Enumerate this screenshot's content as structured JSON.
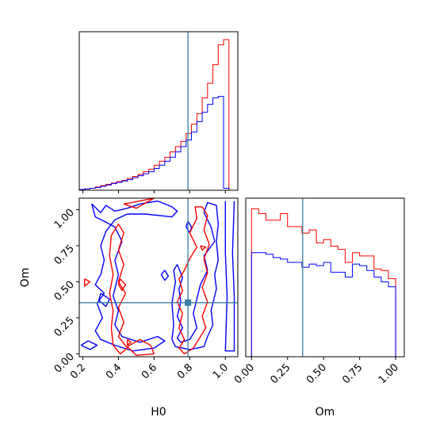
{
  "colors": {
    "series_red": "#ff0000",
    "series_blue": "#0000ff",
    "truth": "#3a7ca5",
    "frame": "#000000"
  },
  "chart_data": {
    "type": "corner-plot",
    "parameters": [
      "H0",
      "Om"
    ],
    "truths": {
      "H0": 0.79,
      "Om": 0.355
    },
    "marginals": {
      "H0": {
        "xlim": [
          0.18,
          1.07
        ],
        "bins": [
          0.18,
          0.21,
          0.24,
          0.27,
          0.3,
          0.33,
          0.36,
          0.39,
          0.42,
          0.45,
          0.48,
          0.51,
          0.54,
          0.57,
          0.6,
          0.63,
          0.66,
          0.69,
          0.72,
          0.75,
          0.78,
          0.81,
          0.84,
          0.87,
          0.9,
          0.93,
          0.96,
          0.99,
          1.02
        ],
        "series": [
          {
            "color": "red",
            "counts": [
              1,
              2,
              3,
              5,
              7,
              9,
              11,
              13,
              15,
              18,
              21,
              24,
              28,
              32,
              38,
              44,
              50,
              58,
              66,
              74,
              86,
              100,
              116,
              140,
              162,
              190,
              220,
              228
            ]
          },
          {
            "color": "blue",
            "counts": [
              1,
              2,
              3,
              4,
              6,
              8,
              10,
              12,
              14,
              16,
              19,
              22,
              25,
              28,
              33,
              38,
              44,
              50,
              58,
              66,
              76,
              88,
              104,
              118,
              130,
              140,
              142,
              3
            ]
          }
        ]
      },
      "Om": {
        "xlim": [
          -0.04,
          1.06
        ],
        "ticks": [
          0.0,
          0.25,
          0.5,
          0.75,
          1.0
        ],
        "tick_labels": [
          "0.00",
          "0.25",
          "0.50",
          "0.75",
          "1.00"
        ],
        "bins": [
          -0.01,
          0.0,
          0.05,
          0.1,
          0.15,
          0.2,
          0.25,
          0.3,
          0.35,
          0.4,
          0.45,
          0.5,
          0.55,
          0.6,
          0.65,
          0.7,
          0.75,
          0.8,
          0.85,
          0.9,
          0.95,
          1.0,
          1.05
        ],
        "series": [
          {
            "color": "red",
            "counts": [
              0,
              182,
              176,
              168,
              168,
              176,
              160,
              160,
              152,
              156,
              140,
              144,
              136,
              132,
              116,
              128,
              124,
              124,
              108,
              106,
              96,
              0
            ]
          },
          {
            "color": "blue",
            "counts": [
              0,
              128,
              128,
              126,
              122,
              120,
              116,
              116,
              110,
              114,
              112,
              116,
              104,
              104,
              98,
              114,
              112,
              106,
              98,
              92,
              86,
              0
            ]
          }
        ]
      }
    },
    "joint": {
      "x_param": "H0",
      "y_param": "Om",
      "xlim": [
        0.18,
        1.07
      ],
      "ylim": [
        -0.02,
        1.08
      ],
      "x_ticks": [
        0.2,
        0.4,
        0.6,
        0.8,
        1.0
      ],
      "x_tick_labels": [
        "0.2",
        "0.4",
        "0.6",
        "0.8",
        "1.0"
      ],
      "y_ticks": [
        0.0,
        0.25,
        0.5,
        0.75,
        1.0
      ],
      "y_tick_labels": [
        "0.00",
        "0.25",
        "0.50",
        "0.75",
        "1.00"
      ],
      "contours": [
        {
          "color": "blue",
          "points": [
            [
              0.25,
              1.04
            ],
            [
              0.3,
              0.98
            ],
            [
              0.33,
              1.03
            ],
            [
              0.38,
              0.99
            ],
            [
              0.45,
              1.01
            ],
            [
              0.52,
              1.04
            ],
            [
              0.62,
              1.06
            ],
            [
              0.7,
              1.02
            ],
            [
              0.73,
              0.99
            ],
            [
              0.7,
              0.95
            ],
            [
              0.55,
              0.97
            ],
            [
              0.45,
              0.97
            ],
            [
              0.38,
              0.93
            ],
            [
              0.33,
              0.85
            ],
            [
              0.3,
              0.75
            ],
            [
              0.32,
              0.65
            ],
            [
              0.3,
              0.55
            ],
            [
              0.27,
              0.48
            ],
            [
              0.32,
              0.42
            ],
            [
              0.28,
              0.35
            ],
            [
              0.31,
              0.25
            ],
            [
              0.27,
              0.16
            ],
            [
              0.3,
              0.1
            ],
            [
              0.38,
              0.06
            ],
            [
              0.48,
              0.02
            ],
            [
              0.6,
              0.04
            ],
            [
              0.66,
              0.09
            ],
            [
              0.62,
              0.12
            ],
            [
              0.52,
              0.08
            ],
            [
              0.42,
              0.12
            ],
            [
              0.38,
              0.2
            ],
            [
              0.4,
              0.3
            ],
            [
              0.37,
              0.4
            ],
            [
              0.4,
              0.55
            ],
            [
              0.38,
              0.65
            ],
            [
              0.42,
              0.78
            ],
            [
              0.38,
              0.88
            ],
            [
              0.32,
              0.92
            ],
            [
              0.27,
              0.95
            ],
            [
              0.25,
              1.04
            ]
          ]
        },
        {
          "color": "blue",
          "points": [
            [
              0.19,
              0.06
            ],
            [
              0.24,
              0.03
            ],
            [
              0.28,
              0.06
            ],
            [
              0.23,
              0.09
            ],
            [
              0.19,
              0.06
            ]
          ]
        },
        {
          "color": "blue",
          "points": [
            [
              0.3,
              0.42
            ],
            [
              0.35,
              0.38
            ],
            [
              0.33,
              0.33
            ],
            [
              0.29,
              0.37
            ],
            [
              0.3,
              0.42
            ]
          ]
        },
        {
          "color": "blue",
          "points": [
            [
              0.73,
              0.62
            ],
            [
              0.76,
              0.53
            ],
            [
              0.74,
              0.45
            ],
            [
              0.75,
              0.36
            ],
            [
              0.73,
              0.26
            ],
            [
              0.76,
              0.18
            ],
            [
              0.73,
              0.11
            ],
            [
              0.75,
              0.08
            ],
            [
              0.8,
              0.1
            ],
            [
              0.84,
              0.18
            ],
            [
              0.82,
              0.28
            ],
            [
              0.84,
              0.38
            ],
            [
              0.86,
              0.48
            ],
            [
              0.9,
              0.58
            ],
            [
              0.88,
              0.68
            ],
            [
              0.94,
              0.78
            ],
            [
              0.92,
              0.88
            ],
            [
              0.88,
              0.98
            ],
            [
              0.9,
              1.05
            ],
            [
              0.95,
              1.03
            ],
            [
              0.96,
              0.9
            ],
            [
              0.95,
              0.78
            ],
            [
              0.96,
              0.65
            ],
            [
              0.94,
              0.55
            ],
            [
              0.95,
              0.45
            ],
            [
              0.92,
              0.3
            ],
            [
              0.93,
              0.2
            ],
            [
              0.9,
              0.12
            ],
            [
              0.88,
              0.05
            ],
            [
              0.8,
              0.03
            ],
            [
              0.72,
              0.05
            ],
            [
              0.7,
              0.1
            ],
            [
              0.71,
              0.2
            ],
            [
              0.7,
              0.35
            ],
            [
              0.72,
              0.5
            ],
            [
              0.71,
              0.58
            ],
            [
              0.73,
              0.62
            ]
          ]
        },
        {
          "color": "blue",
          "points": [
            [
              0.79,
              0.92
            ],
            [
              0.81,
              0.88
            ],
            [
              0.8,
              0.84
            ],
            [
              0.78,
              0.88
            ],
            [
              0.79,
              0.92
            ]
          ]
        },
        {
          "color": "blue",
          "points": [
            [
              0.66,
              0.58
            ],
            [
              0.68,
              0.54
            ],
            [
              0.66,
              0.51
            ],
            [
              0.64,
              0.55
            ],
            [
              0.66,
              0.58
            ]
          ]
        },
        {
          "color": "blue",
          "points": [
            [
              1.0,
              1.06
            ],
            [
              1.0,
              0.7
            ],
            [
              1.01,
              0.4
            ],
            [
              1.0,
              0.02
            ],
            [
              1.05,
              0.02
            ],
            [
              1.05,
              0.4
            ],
            [
              1.04,
              0.7
            ],
            [
              1.05,
              1.06
            ]
          ]
        },
        {
          "color": "red",
          "points": [
            [
              0.36,
              0.82
            ],
            [
              0.4,
              0.9
            ],
            [
              0.43,
              0.84
            ],
            [
              0.4,
              0.72
            ],
            [
              0.43,
              0.62
            ],
            [
              0.4,
              0.5
            ],
            [
              0.44,
              0.42
            ],
            [
              0.4,
              0.32
            ],
            [
              0.43,
              0.22
            ],
            [
              0.4,
              0.12
            ],
            [
              0.45,
              0.04
            ],
            [
              0.41,
              0.0
            ],
            [
              0.37,
              0.06
            ],
            [
              0.36,
              0.18
            ],
            [
              0.37,
              0.3
            ],
            [
              0.35,
              0.42
            ],
            [
              0.37,
              0.55
            ],
            [
              0.35,
              0.68
            ],
            [
              0.36,
              0.82
            ]
          ]
        },
        {
          "color": "red",
          "points": [
            [
              0.43,
              1.04
            ],
            [
              0.52,
              1.06
            ],
            [
              0.6,
              1.08
            ],
            [
              0.5,
              1.01
            ],
            [
              0.43,
              1.04
            ]
          ]
        },
        {
          "color": "red",
          "points": [
            [
              0.45,
              0.05
            ],
            [
              0.52,
              0.1
            ],
            [
              0.58,
              0.06
            ],
            [
              0.6,
              0.0
            ],
            [
              0.5,
              -0.01
            ],
            [
              0.45,
              0.05
            ]
          ]
        },
        {
          "color": "red",
          "points": [
            [
              0.21,
              0.52
            ],
            [
              0.24,
              0.5
            ],
            [
              0.21,
              0.47
            ],
            [
              0.21,
              0.52
            ]
          ]
        },
        {
          "color": "red",
          "points": [
            [
              0.45,
              0.1
            ],
            [
              0.47,
              0.08
            ],
            [
              0.45,
              0.06
            ],
            [
              0.45,
              0.1
            ]
          ]
        },
        {
          "color": "red",
          "points": [
            [
              0.41,
              0.52
            ],
            [
              0.44,
              0.48
            ],
            [
              0.42,
              0.44
            ],
            [
              0.4,
              0.48
            ],
            [
              0.41,
              0.52
            ]
          ]
        },
        {
          "color": "red",
          "points": [
            [
              0.87,
              1.02
            ],
            [
              0.9,
              0.96
            ],
            [
              0.88,
              0.86
            ],
            [
              0.91,
              0.76
            ],
            [
              0.88,
              0.66
            ],
            [
              0.9,
              0.56
            ],
            [
              0.87,
              0.46
            ],
            [
              0.9,
              0.36
            ],
            [
              0.87,
              0.26
            ],
            [
              0.89,
              0.18
            ],
            [
              0.85,
              0.1
            ],
            [
              0.82,
              0.04
            ],
            [
              0.77,
              0.0
            ],
            [
              0.74,
              0.04
            ],
            [
              0.77,
              0.1
            ],
            [
              0.74,
              0.18
            ],
            [
              0.76,
              0.28
            ],
            [
              0.73,
              0.36
            ],
            [
              0.76,
              0.44
            ],
            [
              0.74,
              0.52
            ],
            [
              0.77,
              0.58
            ],
            [
              0.8,
              0.66
            ],
            [
              0.84,
              0.74
            ],
            [
              0.8,
              0.84
            ],
            [
              0.84,
              0.94
            ],
            [
              0.83,
              1.02
            ],
            [
              0.87,
              1.02
            ]
          ]
        },
        {
          "color": "red",
          "points": [
            [
              0.86,
              0.75
            ],
            [
              0.89,
              0.74
            ],
            [
              0.87,
              0.72
            ],
            [
              0.86,
              0.75
            ]
          ]
        }
      ],
      "truth_marker": {
        "x": 0.79,
        "y": 0.355
      }
    }
  }
}
